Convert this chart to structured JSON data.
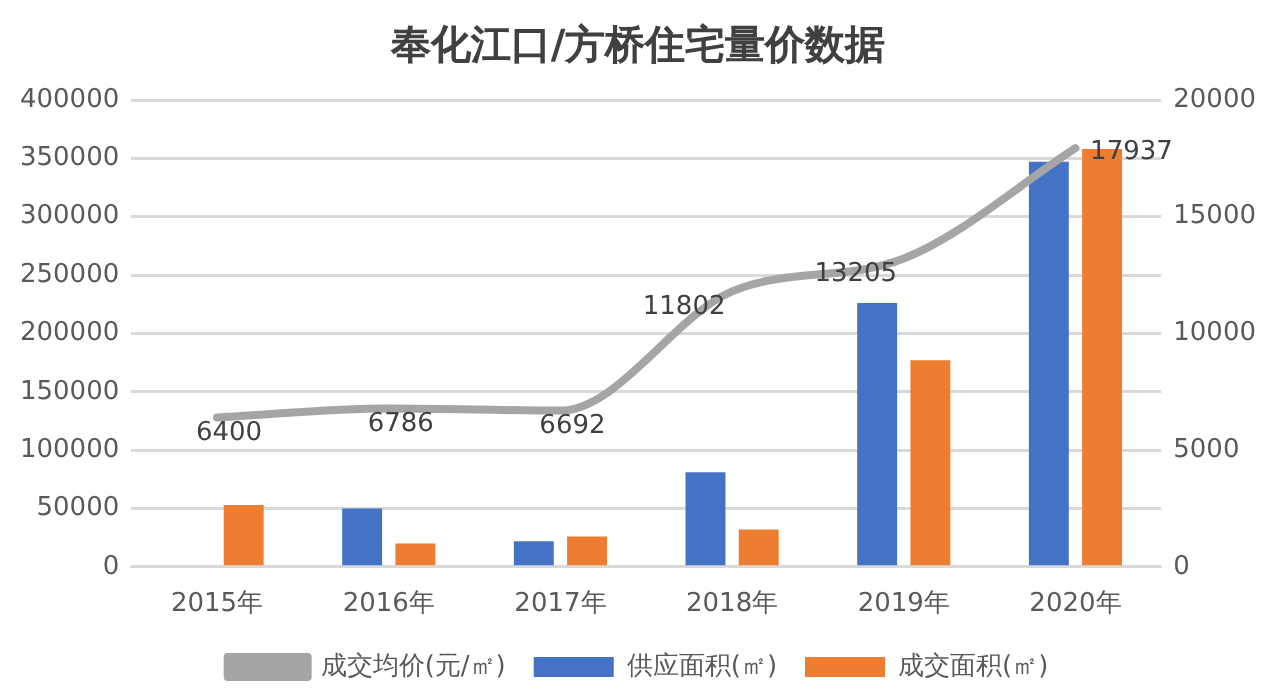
{
  "chart_data": {
    "type": "bar",
    "title": "奉化江口/方桥住宅量价数据",
    "categories": [
      "2015年",
      "2016年",
      "2017年",
      "2018年",
      "2019年",
      "2020年"
    ],
    "series": [
      {
        "name": "供应面积(㎡)",
        "color": "#4472c4",
        "values": [
          null,
          50000,
          22000,
          81000,
          226000,
          347000
        ]
      },
      {
        "name": "成交面积(㎡)",
        "color": "#ed7d31",
        "values": [
          53000,
          20000,
          26000,
          32000,
          177000,
          358000
        ]
      },
      {
        "name": "成交均价(元/㎡)",
        "type": "line",
        "axis": "y2",
        "color": "#a5a5a5",
        "values": [
          6400,
          6786,
          6692,
          11802,
          13205,
          17937
        ],
        "value_labels": [
          "6400",
          "6786",
          "6692",
          "11802",
          "13205",
          "17937"
        ]
      }
    ],
    "ylim": [
      0,
      400000
    ],
    "yticks": [
      0,
      50000,
      100000,
      150000,
      200000,
      250000,
      300000,
      350000,
      400000
    ],
    "y2lim": [
      0,
      20000
    ],
    "y2ticks": [
      0,
      5000,
      10000,
      15000,
      20000
    ],
    "grid": "y",
    "legend": "bottom",
    "marker": "none"
  }
}
